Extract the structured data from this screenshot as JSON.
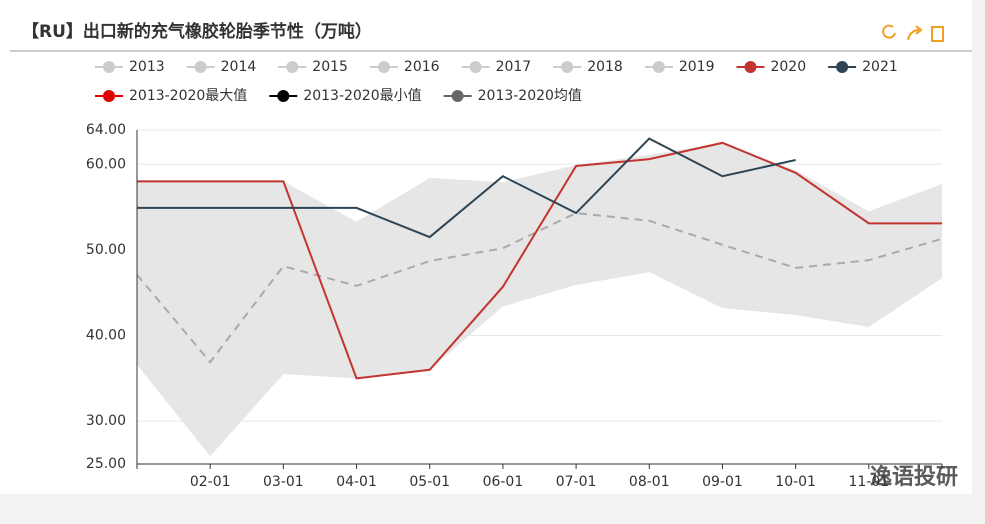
{
  "chart_data": {
    "type": "line",
    "title": "【RU】出口新的充气橡胶轮胎季节性（万吨）",
    "watermark": "逸语投研",
    "categories": [
      null,
      "02-01",
      "03-01",
      "04-01",
      "05-01",
      "06-01",
      "07-01",
      "08-01",
      "09-01",
      "10-01",
      "11-01",
      null
    ],
    "ylim": [
      25,
      64
    ],
    "yticks": [
      {
        "value": 25,
        "label": "25.00"
      },
      {
        "value": 30,
        "label": "30.00"
      },
      {
        "value": 40,
        "label": "40.00"
      },
      {
        "value": 50,
        "label": "50.00"
      },
      {
        "value": 60,
        "label": "60.00"
      },
      {
        "value": 64,
        "label": "64.00"
      }
    ],
    "grid": true,
    "series": [
      {
        "name": "2013",
        "color": "#cccccc",
        "hidden": true
      },
      {
        "name": "2014",
        "color": "#cccccc",
        "hidden": true
      },
      {
        "name": "2015",
        "color": "#cccccc",
        "hidden": true
      },
      {
        "name": "2016",
        "color": "#cccccc",
        "hidden": true
      },
      {
        "name": "2017",
        "color": "#cccccc",
        "hidden": true
      },
      {
        "name": "2018",
        "color": "#cccccc",
        "hidden": true
      },
      {
        "name": "2019",
        "color": "#cccccc",
        "hidden": true
      },
      {
        "name": "2020",
        "color": "#c23531",
        "render": "line",
        "values": [
          58,
          58,
          58,
          35,
          36,
          45.7,
          59.8,
          60.6,
          62.5,
          59,
          53.1,
          53.1
        ]
      },
      {
        "name": "2021",
        "color": "#2f4554",
        "render": "line",
        "values": [
          54.9,
          54.9,
          54.9,
          54.9,
          51.5,
          58.6,
          54.3,
          63,
          58.6,
          60.5,
          null,
          null
        ]
      },
      {
        "name": "2013-2020最大值",
        "color": "#e00000",
        "render": "area-top",
        "values": [
          58,
          58,
          58,
          53.3,
          58.4,
          57.9,
          59.9,
          61.1,
          62.5,
          59.3,
          54.5,
          57.7
        ]
      },
      {
        "name": "2013-2020最小值",
        "color": "#000000",
        "render": "area-bottom",
        "values": [
          36.6,
          25.9,
          35.5,
          35,
          36,
          43.4,
          45.9,
          47.4,
          43.2,
          42.4,
          41,
          46.7
        ]
      },
      {
        "name": "2013-2020均值",
        "color": "#666666",
        "render": "dashed",
        "values": [
          47.1,
          36.9,
          48.1,
          45.8,
          48.7,
          50.2,
          54.3,
          53.4,
          50.6,
          47.9,
          48.8,
          51.3
        ]
      }
    ]
  }
}
